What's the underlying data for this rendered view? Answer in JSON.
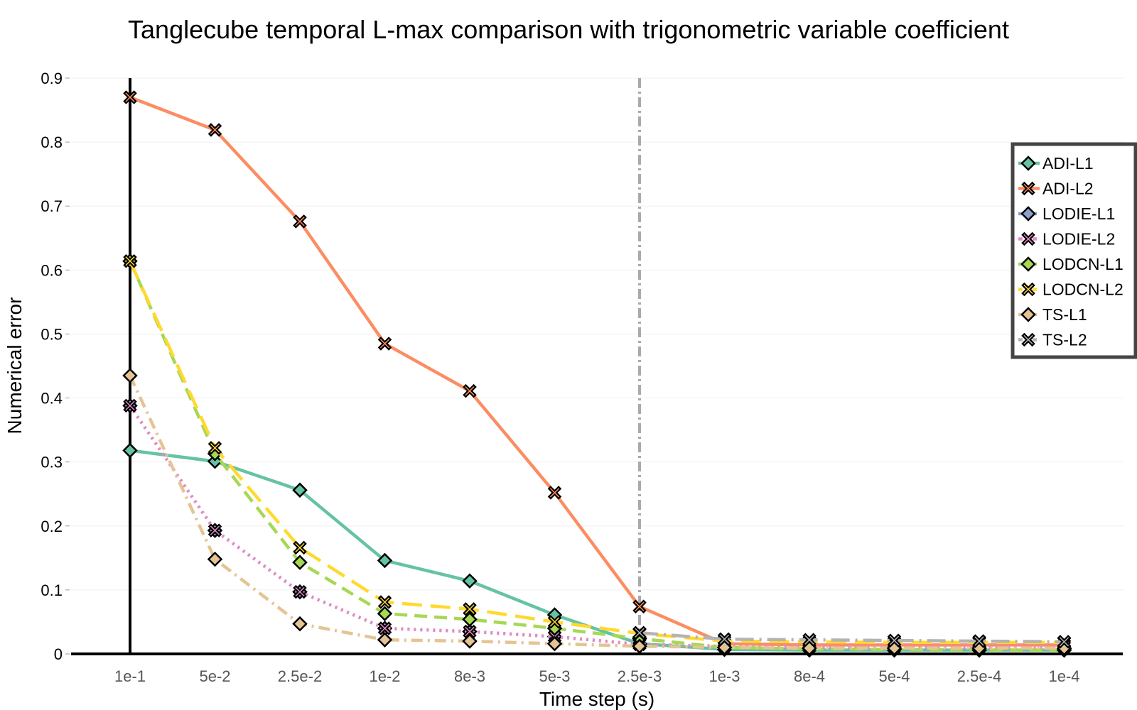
{
  "chart_data": {
    "type": "line",
    "title": "Tanglecube temporal L-max comparison with trigonometric variable coefficient",
    "xlabel": "Time step (s)",
    "ylabel": "Numerical error",
    "categories": [
      "1e-1",
      "5e-2",
      "2.5e-2",
      "1e-2",
      "8e-3",
      "5e-3",
      "2.5e-3",
      "1e-3",
      "8e-4",
      "5e-4",
      "2.5e-4",
      "1e-4"
    ],
    "ylim": [
      0,
      0.9
    ],
    "yticks": [
      0,
      0.1,
      0.2,
      0.3,
      0.4,
      0.5,
      0.6,
      0.7,
      0.8,
      0.9
    ],
    "ytick_labels": [
      "0",
      "0.1",
      "0.2",
      "0.3",
      "0.4",
      "0.5",
      "0.6",
      "0.7",
      "0.8",
      "0.9"
    ],
    "vertical_reference_line": "2.5e-3",
    "grid": "horizontal, faint",
    "legend_position": "right",
    "series": [
      {
        "name": "ADI-L1",
        "color": "#66c2a5",
        "dash": "solid",
        "marker": "diamond",
        "values": [
          0.318,
          0.301,
          0.256,
          0.146,
          0.114,
          0.061,
          0.016,
          0.007,
          0.006,
          0.006,
          0.006,
          0.006
        ]
      },
      {
        "name": "ADI-L2",
        "color": "#fc8d62",
        "dash": "solid",
        "marker": "x",
        "values": [
          0.87,
          0.819,
          0.676,
          0.485,
          0.411,
          0.252,
          0.074,
          0.016,
          0.014,
          0.014,
          0.014,
          0.014
        ]
      },
      {
        "name": "LODIE-L1",
        "color": "#8da0cb",
        "dash": "dot",
        "marker": "diamond",
        "values": [
          0.388,
          0.193,
          0.097,
          0.04,
          0.035,
          0.027,
          0.015,
          0.011,
          0.01,
          0.009,
          0.009,
          0.008
        ]
      },
      {
        "name": "LODIE-L2",
        "color": "#e78ac3",
        "dash": "dot",
        "marker": "x",
        "values": [
          0.388,
          0.193,
          0.097,
          0.04,
          0.035,
          0.027,
          0.015,
          0.012,
          0.012,
          0.011,
          0.011,
          0.011
        ]
      },
      {
        "name": "LODCN-L1",
        "color": "#a6d854",
        "dash": "dash",
        "marker": "diamond",
        "values": [
          0.614,
          0.313,
          0.143,
          0.063,
          0.054,
          0.04,
          0.024,
          0.01,
          0.008,
          0.007,
          0.006,
          0.006
        ]
      },
      {
        "name": "LODCN-L2",
        "color": "#ffd92f",
        "dash": "longdash",
        "marker": "x",
        "values": [
          0.614,
          0.322,
          0.166,
          0.081,
          0.07,
          0.05,
          0.032,
          0.02,
          0.019,
          0.018,
          0.018,
          0.018
        ]
      },
      {
        "name": "TS-L1",
        "color": "#e5c494",
        "dash": "dashdot",
        "marker": "diamond",
        "values": [
          0.435,
          0.148,
          0.047,
          0.022,
          0.02,
          0.016,
          0.012,
          0.01,
          0.009,
          0.009,
          0.009,
          0.009
        ]
      },
      {
        "name": "TS-L2",
        "color": "#b3b3b3",
        "dash": "longdashdot",
        "marker": "x",
        "values": [
          null,
          null,
          null,
          null,
          null,
          null,
          0.033,
          0.023,
          0.022,
          0.021,
          0.02,
          0.019
        ]
      }
    ]
  }
}
